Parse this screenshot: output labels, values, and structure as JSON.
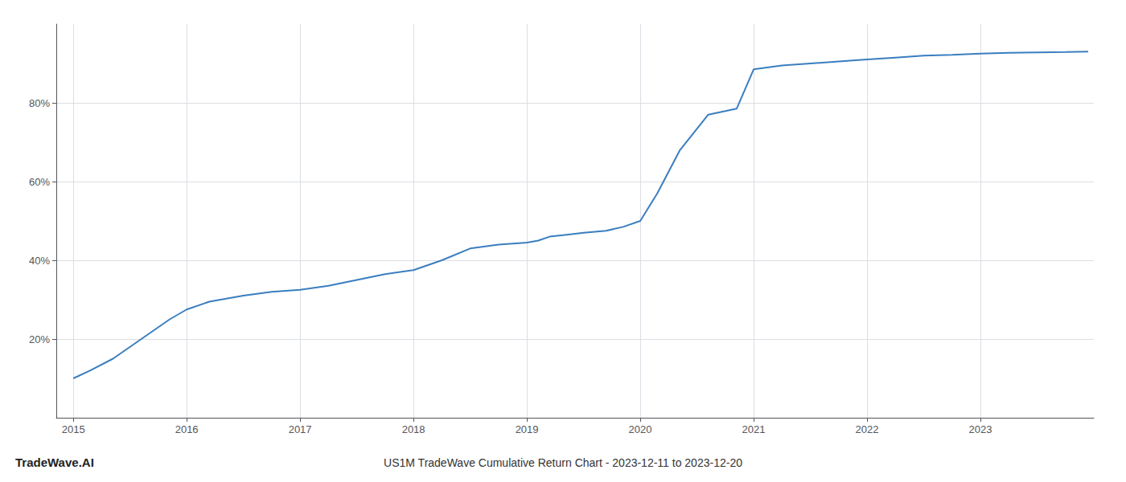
{
  "chart_data": {
    "type": "line",
    "title": "US1M TradeWave Cumulative Return Chart - 2023-12-11 to 2023-12-20",
    "annotations": [
      "TradeWave.AI"
    ],
    "x": [
      2015.0,
      2015.15,
      2015.35,
      2015.6,
      2015.85,
      2016.0,
      2016.2,
      2016.5,
      2016.75,
      2017.0,
      2017.25,
      2017.5,
      2017.75,
      2018.0,
      2018.25,
      2018.5,
      2018.75,
      2019.0,
      2019.1,
      2019.2,
      2019.35,
      2019.5,
      2019.7,
      2019.85,
      2020.0,
      2020.15,
      2020.35,
      2020.6,
      2020.85,
      2021.0,
      2021.25,
      2021.5,
      2021.75,
      2022.0,
      2022.25,
      2022.5,
      2022.75,
      2023.0,
      2023.25,
      2023.5,
      2023.75,
      2023.95
    ],
    "values": [
      10,
      12,
      15,
      20,
      25,
      27.5,
      29.5,
      31.0,
      32.0,
      32.5,
      33.5,
      35.0,
      36.5,
      37.5,
      40.0,
      43.0,
      44.0,
      44.5,
      45.0,
      46.0,
      46.5,
      47.0,
      47.5,
      48.5,
      50.0,
      57.0,
      68.0,
      77.0,
      78.5,
      88.5,
      89.5,
      90.0,
      90.5,
      91.0,
      91.5,
      92.0,
      92.2,
      92.5,
      92.7,
      92.8,
      92.9,
      93.0
    ],
    "color": "#3a7ebf",
    "xlim": [
      2014.85,
      2024.0
    ],
    "xticks": [
      2015,
      2016,
      2017,
      2018,
      2019,
      2020,
      2021,
      2022,
      2023
    ],
    "ylim": [
      0,
      100
    ],
    "yticks": [
      {
        "value": 20,
        "label": "20%"
      },
      {
        "value": 40,
        "label": "40%"
      },
      {
        "value": 60,
        "label": "60%"
      },
      {
        "value": 80,
        "label": "80%"
      }
    ],
    "grid": true
  }
}
